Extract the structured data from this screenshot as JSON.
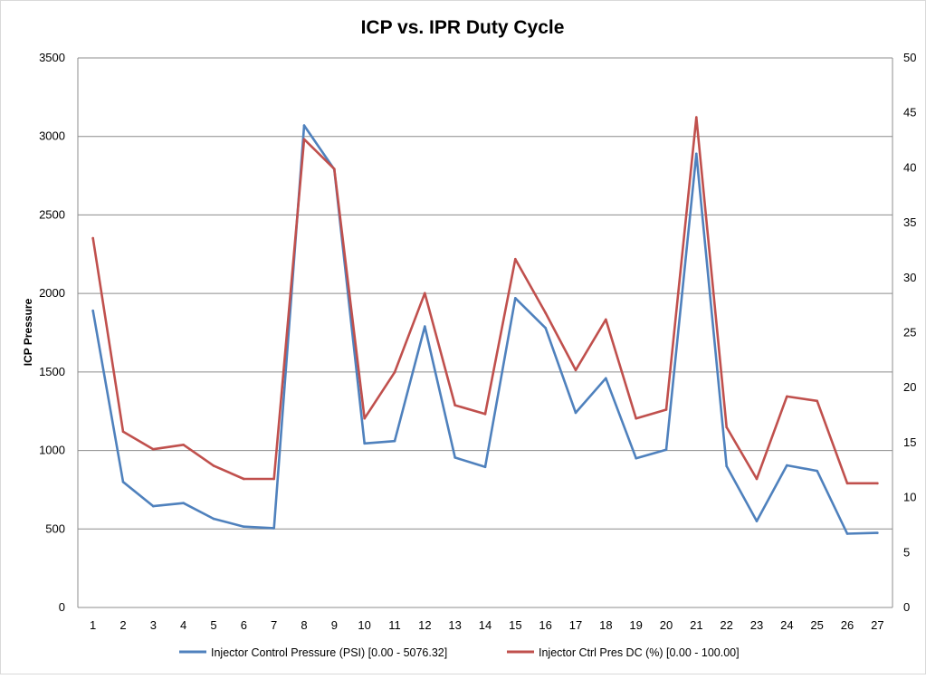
{
  "chart_data": {
    "type": "line",
    "title": "ICP vs. IPR Duty Cycle",
    "xlabel": "",
    "ylabel": "ICP Pressure",
    "y2label": "",
    "ylim": [
      0,
      3500
    ],
    "y2lim": [
      0,
      50
    ],
    "yticks": [
      "0",
      "500",
      "1000",
      "1500",
      "2000",
      "2500",
      "3000",
      "3500"
    ],
    "y2ticks": [
      "0",
      "5",
      "10",
      "15",
      "20",
      "25",
      "30",
      "35",
      "40",
      "45",
      "50"
    ],
    "categories": [
      "1",
      "2",
      "3",
      "4",
      "5",
      "6",
      "7",
      "8",
      "9",
      "10",
      "11",
      "12",
      "13",
      "14",
      "15",
      "16",
      "17",
      "18",
      "19",
      "20",
      "21",
      "22",
      "23",
      "24",
      "25",
      "26",
      "27"
    ],
    "grid": true,
    "legend_position": "bottom",
    "series": [
      {
        "name": "Injector Control Pressure (PSI) [0.00 - 5076.32]",
        "axis": "left",
        "color": "#4F81BD",
        "values": [
          1890,
          800,
          645,
          665,
          565,
          515,
          505,
          3070,
          2790,
          1045,
          1060,
          1790,
          955,
          895,
          1970,
          1780,
          1240,
          1460,
          950,
          1005,
          2890,
          900,
          550,
          905,
          870,
          470,
          475
        ]
      },
      {
        "name": "Injector Ctrl Pres DC (%) [0.00 - 100.00]",
        "axis": "right",
        "color": "#C0504D",
        "values": [
          33.6,
          16.0,
          14.4,
          14.8,
          12.9,
          11.7,
          11.7,
          42.6,
          39.9,
          17.2,
          21.4,
          28.6,
          18.4,
          17.6,
          31.7,
          26.8,
          21.6,
          26.2,
          17.2,
          18.0,
          44.6,
          16.4,
          11.7,
          19.2,
          18.8,
          11.3,
          11.3
        ]
      }
    ]
  }
}
